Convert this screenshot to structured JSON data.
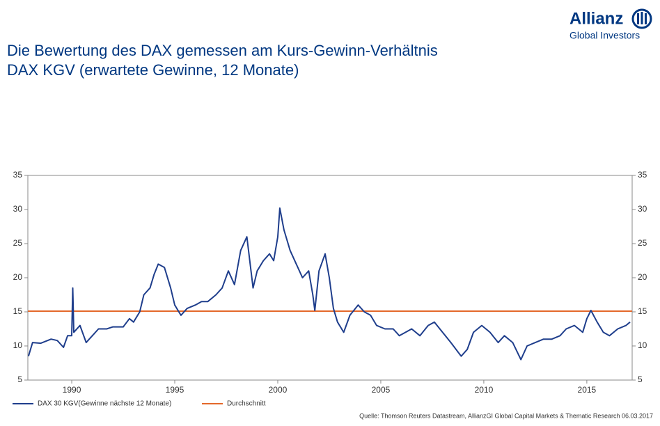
{
  "brand": {
    "name": "Allianz",
    "sub": "Global Investors"
  },
  "chart_data": {
    "type": "line",
    "title": "Die Bewertung des DAX gemessen am Kurs-Gewinn-Verhältnis",
    "subtitle": "DAX KGV (erwartete Gewinne, 12 Monate)",
    "source": "Quelle: Thomson Reuters Datastream, AllianzGI Global Capital Markets & Thematic Research 06.03.2017",
    "x": [
      1987.9,
      1988.1,
      1988.5,
      1989.0,
      1989.3,
      1989.6,
      1989.8,
      1990.0,
      1990.05,
      1990.1,
      1990.4,
      1990.7,
      1991.0,
      1991.3,
      1991.7,
      1992.0,
      1992.5,
      1992.8,
      1993.0,
      1993.3,
      1993.5,
      1993.8,
      1994.0,
      1994.2,
      1994.5,
      1994.8,
      1995.0,
      1995.3,
      1995.6,
      1996.0,
      1996.3,
      1996.6,
      1997.0,
      1997.3,
      1997.6,
      1997.9,
      1998.2,
      1998.5,
      1998.8,
      1999.0,
      1999.3,
      1999.6,
      1999.8,
      2000.0,
      2000.1,
      2000.3,
      2000.6,
      2000.9,
      2001.2,
      2001.5,
      2001.7,
      2001.8,
      2002.0,
      2002.3,
      2002.5,
      2002.7,
      2002.9,
      2003.2,
      2003.5,
      2003.9,
      2004.2,
      2004.5,
      2004.8,
      2005.2,
      2005.6,
      2005.9,
      2006.2,
      2006.5,
      2006.9,
      2007.3,
      2007.6,
      2008.0,
      2008.4,
      2008.9,
      2009.2,
      2009.5,
      2009.9,
      2010.3,
      2010.7,
      2011.0,
      2011.4,
      2011.8,
      2012.1,
      2012.5,
      2012.9,
      2013.3,
      2013.7,
      2014.0,
      2014.4,
      2014.8,
      2015.0,
      2015.2,
      2015.5,
      2015.8,
      2016.1,
      2016.5,
      2016.9,
      2017.1
    ],
    "series": [
      {
        "name": "DAX 30 KGV(Gewinne nächste 12 Monate)",
        "color": "#1f3e8c",
        "values": [
          8.5,
          10.5,
          10.4,
          11.0,
          10.8,
          9.8,
          11.5,
          11.5,
          18.5,
          12.0,
          13.0,
          10.5,
          11.5,
          12.5,
          12.5,
          12.8,
          12.8,
          14.0,
          13.5,
          15.0,
          17.5,
          18.5,
          20.5,
          22.0,
          21.5,
          18.5,
          16.0,
          14.5,
          15.5,
          16.0,
          16.5,
          16.5,
          17.5,
          18.5,
          21.0,
          19.0,
          24.0,
          26.0,
          18.5,
          21.0,
          22.5,
          23.5,
          22.5,
          26.0,
          30.2,
          27.0,
          24.0,
          22.0,
          20.0,
          21.0,
          17.5,
          15.2,
          21.0,
          23.5,
          20.0,
          15.5,
          13.5,
          12.0,
          14.5,
          16.0,
          15.0,
          14.5,
          13.0,
          12.5,
          12.5,
          11.5,
          12.0,
          12.5,
          11.5,
          13.0,
          13.5,
          12.0,
          10.5,
          8.5,
          9.5,
          12.0,
          13.0,
          12.0,
          10.5,
          11.5,
          10.5,
          8.0,
          10.0,
          10.5,
          11.0,
          11.0,
          11.5,
          12.5,
          13.0,
          12.0,
          14.0,
          15.2,
          13.5,
          12.0,
          11.5,
          12.5,
          13.0,
          13.5
        ]
      }
    ],
    "average": {
      "name": "Durchschnitt",
      "color": "#e4682a",
      "value": 15.1
    },
    "xlim": [
      1987.87,
      2017.2
    ],
    "xticks": [
      1990,
      1995,
      2000,
      2005,
      2010,
      2015
    ],
    "ylim": [
      5,
      35
    ],
    "yticks": [
      5,
      10,
      15,
      20,
      25,
      30,
      35
    ]
  }
}
